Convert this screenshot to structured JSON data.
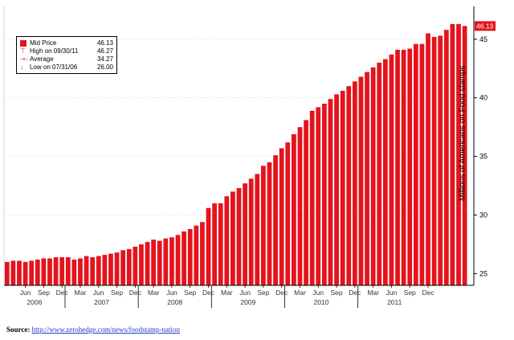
{
  "chart_data": {
    "type": "bar",
    "ylabel": "Millions of Americans on Food stamps",
    "ylim": [
      24,
      47.8
    ],
    "yticks": [
      25,
      30,
      35,
      40,
      45
    ],
    "last_value_badge": "46.13",
    "x_start": "2006-03",
    "x_end": "2011-11",
    "month_ticks": [
      "Jun",
      "Sep",
      "Dec",
      "Mar",
      "Jun",
      "Sep",
      "Dec",
      "Mar",
      "Jun",
      "Sep",
      "Dec",
      "Mar",
      "Jun",
      "Sep",
      "Dec",
      "Mar",
      "Jun",
      "Sep",
      "Dec",
      "Mar",
      "Jun",
      "Sep",
      "Dec"
    ],
    "years": [
      "2006",
      "2007",
      "2008",
      "2009",
      "2010",
      "2011"
    ],
    "values": [
      26.0,
      26.1,
      26.1,
      26.0,
      26.1,
      26.2,
      26.3,
      26.3,
      26.4,
      26.4,
      26.4,
      26.2,
      26.3,
      26.5,
      26.4,
      26.5,
      26.6,
      26.7,
      26.8,
      27.0,
      27.1,
      27.3,
      27.5,
      27.7,
      27.9,
      27.8,
      28.0,
      28.1,
      28.3,
      28.6,
      28.8,
      29.1,
      29.4,
      30.6,
      31.0,
      31.0,
      31.6,
      32.0,
      32.3,
      32.7,
      33.1,
      33.5,
      34.2,
      34.5,
      35.1,
      35.7,
      36.2,
      36.9,
      37.5,
      38.1,
      38.9,
      39.2,
      39.5,
      39.9,
      40.3,
      40.6,
      41.0,
      41.4,
      41.8,
      42.2,
      42.6,
      43.0,
      43.3,
      43.7,
      44.1,
      44.1,
      44.2,
      44.6,
      44.6,
      45.5,
      45.2,
      45.3,
      45.8,
      46.3,
      46.3,
      46.13
    ],
    "legend": [
      {
        "symbol": "box",
        "label": "Mid Price",
        "value": "46.13"
      },
      {
        "symbol": "T",
        "label": "High on 09/30/11",
        "value": "46.27"
      },
      {
        "symbol": "-+-",
        "label": "Average",
        "value": "34.27"
      },
      {
        "symbol": "↓",
        "label": "Low on 07/31/06",
        "value": "26.00"
      }
    ],
    "colors": {
      "bar": "#e4141d",
      "bg": "#ffffff",
      "axis": "#000000",
      "grid": "#d9d9d9",
      "text": "#000000",
      "badge": "#e4141d"
    }
  },
  "source": {
    "label": "Source:",
    "url": "http://www.zerohedge.com/news/foodstamp-nation"
  }
}
